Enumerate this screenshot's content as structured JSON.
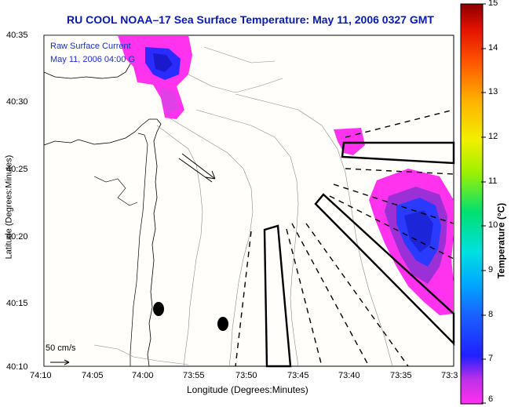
{
  "title": "RU COOL   NOAA–17  Sea Surface Temperature:  May 11, 2006 0327 GMT",
  "y_axis_title": "Latitude (Degrees:Minutes)",
  "x_axis_title": "Longitude (Degrees:Minutes)",
  "y_ticks": [
    "40:35",
    "40:30",
    "40:25",
    "40:20",
    "40:15",
    "40:10"
  ],
  "x_ticks": [
    "74:10",
    "74:05",
    "74:00",
    "73:55",
    "73:50",
    "73:45",
    "73:40",
    "73:35",
    "73:3"
  ],
  "current_legend": {
    "line1": "Raw Surface Current",
    "line2": "May 11, 2006 04:00 G"
  },
  "scale_label": "50 cm/s",
  "colorbar": {
    "title": "Temperature (°C)",
    "ticks": [
      "15",
      "14",
      "13",
      "12",
      "11",
      "10",
      "9",
      "8",
      "7",
      "6"
    ],
    "range": [
      6,
      15
    ]
  },
  "colors": {
    "title": "#0a1aa8",
    "legend_text": "#1a2fbf",
    "cold": "#1e2fff",
    "warm_pink": "#ff33ee"
  }
}
